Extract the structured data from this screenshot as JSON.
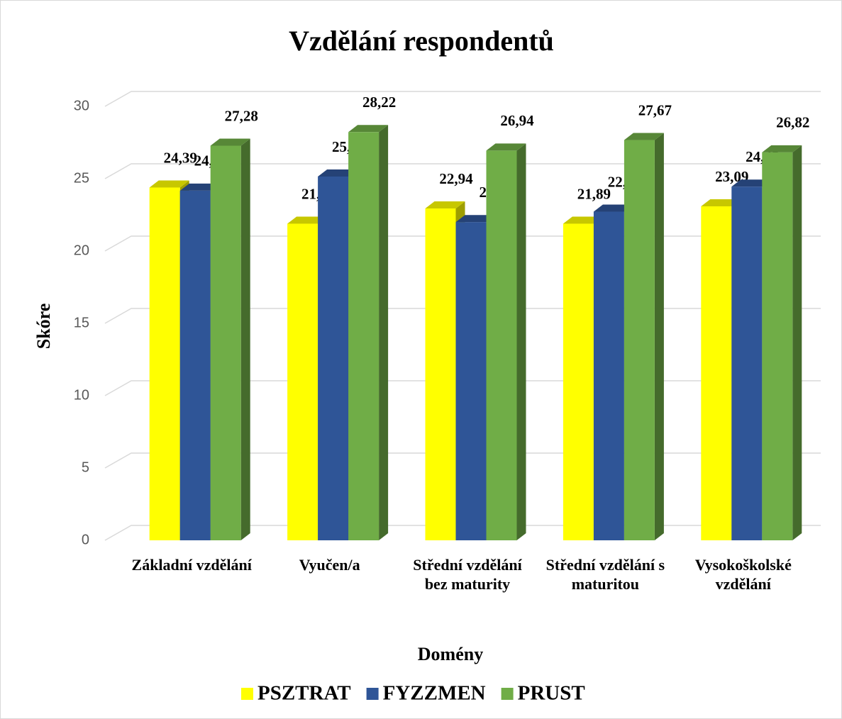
{
  "chart_data": {
    "type": "bar3d",
    "title": "Vzdělání respondentů",
    "x_label": "Domény",
    "y_label": "Skóre",
    "categories": [
      "Základní vzdělání",
      "Vyučen/a",
      "Střední vzdělání bez maturity",
      "Střední vzdělání s maturitou",
      "Vysokoškolské vzdělání"
    ],
    "series": [
      {
        "name": "PSZTRAT",
        "color": "#ffff00",
        "values": [
          24.39,
          21.89,
          22.94,
          21.89,
          23.09
        ],
        "value_labels": [
          "24,39",
          "21,89",
          "22,94",
          "21,89",
          "23,09"
        ]
      },
      {
        "name": "FYZZMEN",
        "color": "#2f5597",
        "values": [
          24.17,
          25.15,
          22,
          22.72,
          24.45
        ],
        "value_labels": [
          "24,17",
          "25,15",
          "22",
          "22,72",
          "24,45"
        ]
      },
      {
        "name": "PRUST",
        "color": "#70ad47",
        "values": [
          27.28,
          28.22,
          26.94,
          27.67,
          26.82
        ],
        "value_labels": [
          "27,28",
          "28,22",
          "26,94",
          "27,67",
          "26,82"
        ]
      }
    ],
    "ylim": [
      0,
      30
    ],
    "yticks": [
      0,
      5,
      10,
      15,
      20,
      25,
      30
    ],
    "grid": true,
    "legend": "bottom"
  }
}
